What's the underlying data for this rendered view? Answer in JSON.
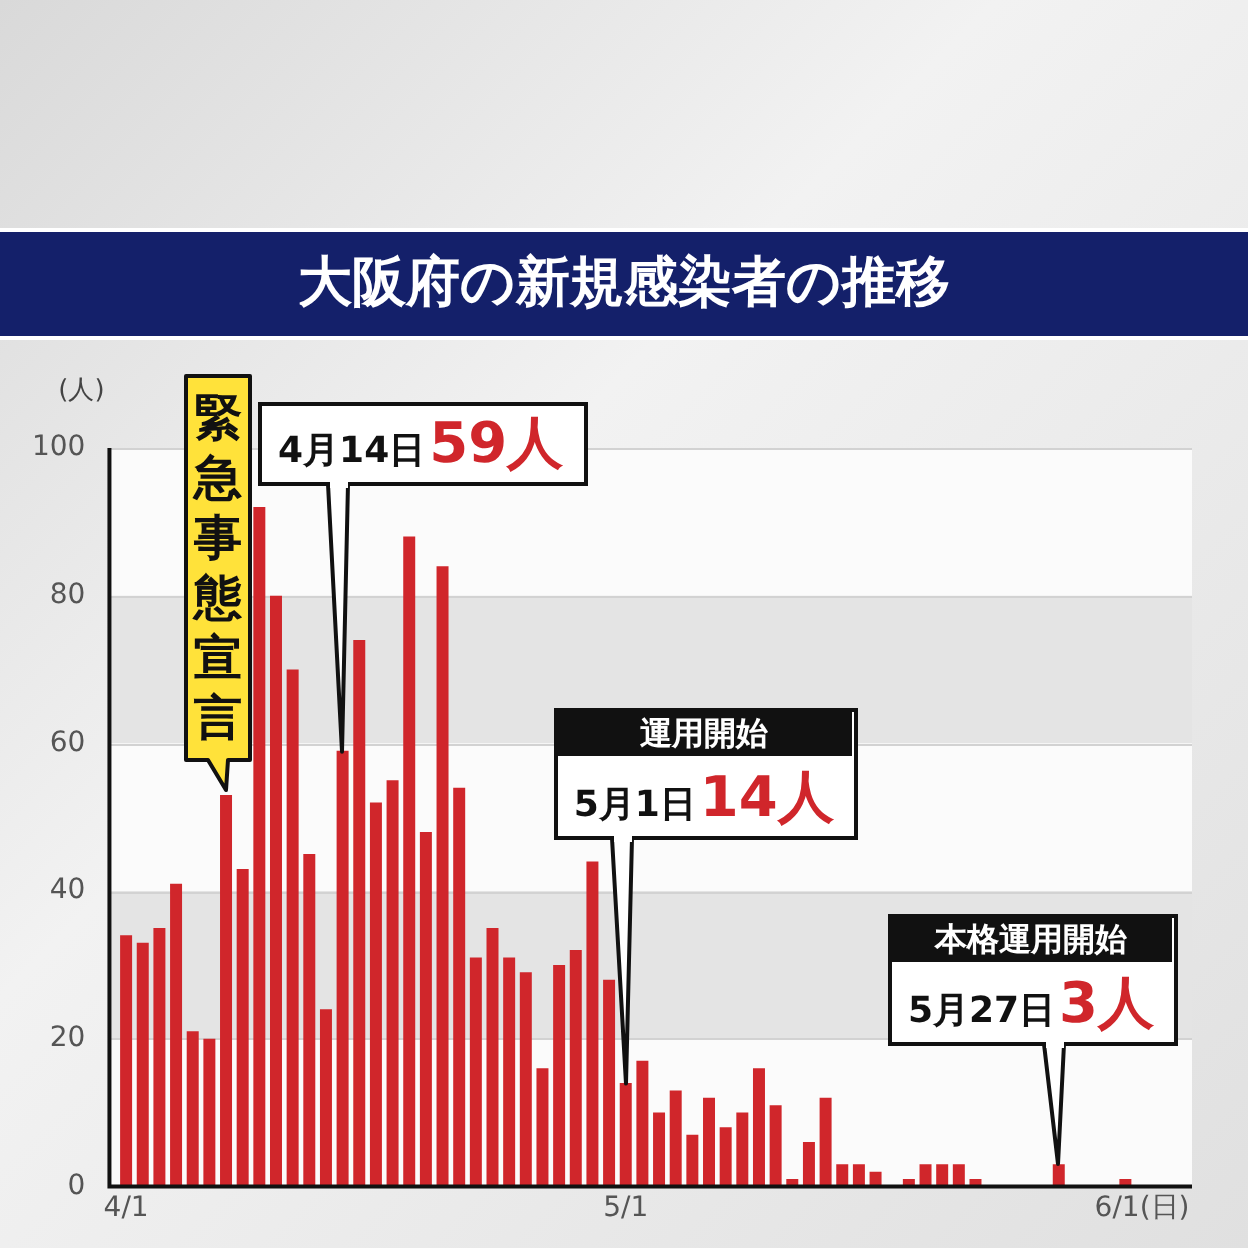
{
  "chart_data": {
    "type": "bar",
    "title": "大阪府の新規感染者の推移",
    "ylabel": "(人)",
    "x": [
      "--04-01",
      "--04-02",
      "--04-03",
      "--04-04",
      "--04-05",
      "--04-06",
      "--04-07",
      "--04-08",
      "--04-09",
      "--04-10",
      "--04-11",
      "--04-12",
      "--04-13",
      "--04-14",
      "--04-15",
      "--04-16",
      "--04-17",
      "--04-18",
      "--04-19",
      "--04-20",
      "--04-21",
      "--04-22",
      "--04-23",
      "--04-24",
      "--04-25",
      "--04-26",
      "--04-27",
      "--04-28",
      "--04-29",
      "--04-30",
      "--05-01",
      "--05-02",
      "--05-03",
      "--05-04",
      "--05-05",
      "--05-06",
      "--05-07",
      "--05-08",
      "--05-09",
      "--05-10",
      "--05-11",
      "--05-12",
      "--05-13",
      "--05-14",
      "--05-15",
      "--05-16",
      "--05-17",
      "--05-18",
      "--05-19",
      "--05-20",
      "--05-21",
      "--05-22",
      "--05-23",
      "--05-24",
      "--05-25",
      "--05-26",
      "--05-27",
      "--05-28",
      "--05-29",
      "--05-30",
      "--05-31"
    ],
    "values": [
      34,
      33,
      35,
      41,
      21,
      20,
      53,
      43,
      92,
      80,
      70,
      45,
      24,
      59,
      74,
      52,
      55,
      88,
      48,
      84,
      54,
      31,
      35,
      31,
      29,
      16,
      30,
      32,
      44,
      28,
      14,
      17,
      10,
      13,
      7,
      12,
      8,
      10,
      16,
      11,
      1,
      6,
      12,
      3,
      3,
      2,
      0,
      1,
      3,
      3,
      3,
      1,
      0,
      0,
      0,
      0,
      3,
      0,
      0,
      0,
      1
    ],
    "color": "#d0262b",
    "xlim": [
      "--03-31",
      "--06-04"
    ],
    "xticks": [
      {
        "value": "--04-01",
        "label": "4/1"
      },
      {
        "value": "--05-01",
        "label": "5/1"
      },
      {
        "value": "--06-01",
        "label": "6/1(日)"
      }
    ],
    "ylim": [
      0,
      100
    ],
    "yticks": [
      0,
      20,
      40,
      60,
      80,
      100
    ],
    "grid": "y",
    "legend": false,
    "annotations": [
      {
        "text": "緊急事態宣言",
        "x": "--04-07",
        "y": 53
      },
      {
        "text": "4月14日59人",
        "x": "--04-14",
        "y": 59
      },
      {
        "text": "運用開始\n5月1日14人",
        "x": "--05-01",
        "y": 14
      },
      {
        "text": "本格運用開始\n5月27日3人",
        "x": "--05-27",
        "y": 3
      }
    ]
  }
}
